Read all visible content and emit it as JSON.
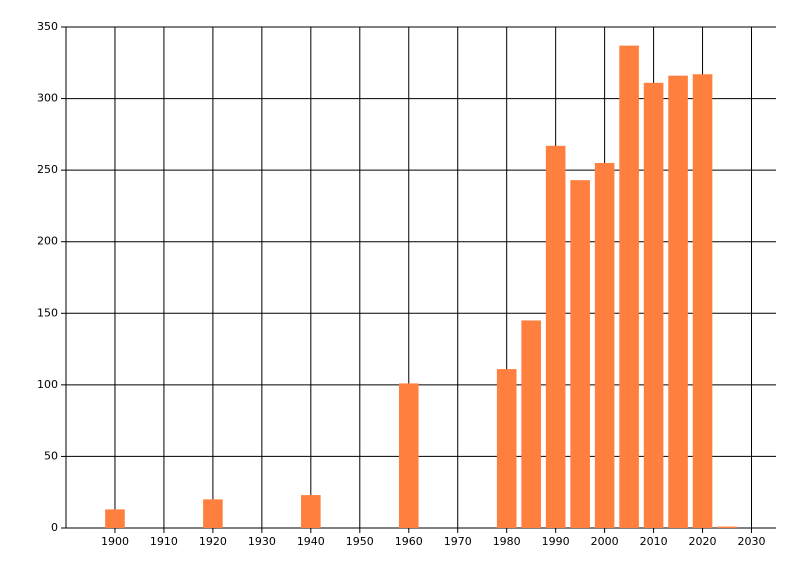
{
  "chart_data": {
    "type": "bar",
    "x": [
      1900,
      1920,
      1940,
      1960,
      1980,
      1985,
      1990,
      1995,
      2000,
      2005,
      2010,
      2015,
      2020,
      2025
    ],
    "values": [
      13,
      20,
      23,
      101,
      111,
      145,
      267,
      243,
      255,
      337,
      311,
      316,
      317,
      1
    ],
    "color": "#ff7f3f",
    "xlim": [
      1890,
      2035
    ],
    "xticks": [
      1900,
      1910,
      1920,
      1930,
      1940,
      1950,
      1960,
      1970,
      1980,
      1990,
      2000,
      2010,
      2020,
      2030
    ],
    "ylim": [
      0,
      350
    ],
    "yticks": [
      0,
      50,
      100,
      150,
      200,
      250,
      300,
      350
    ],
    "grid": true
  }
}
